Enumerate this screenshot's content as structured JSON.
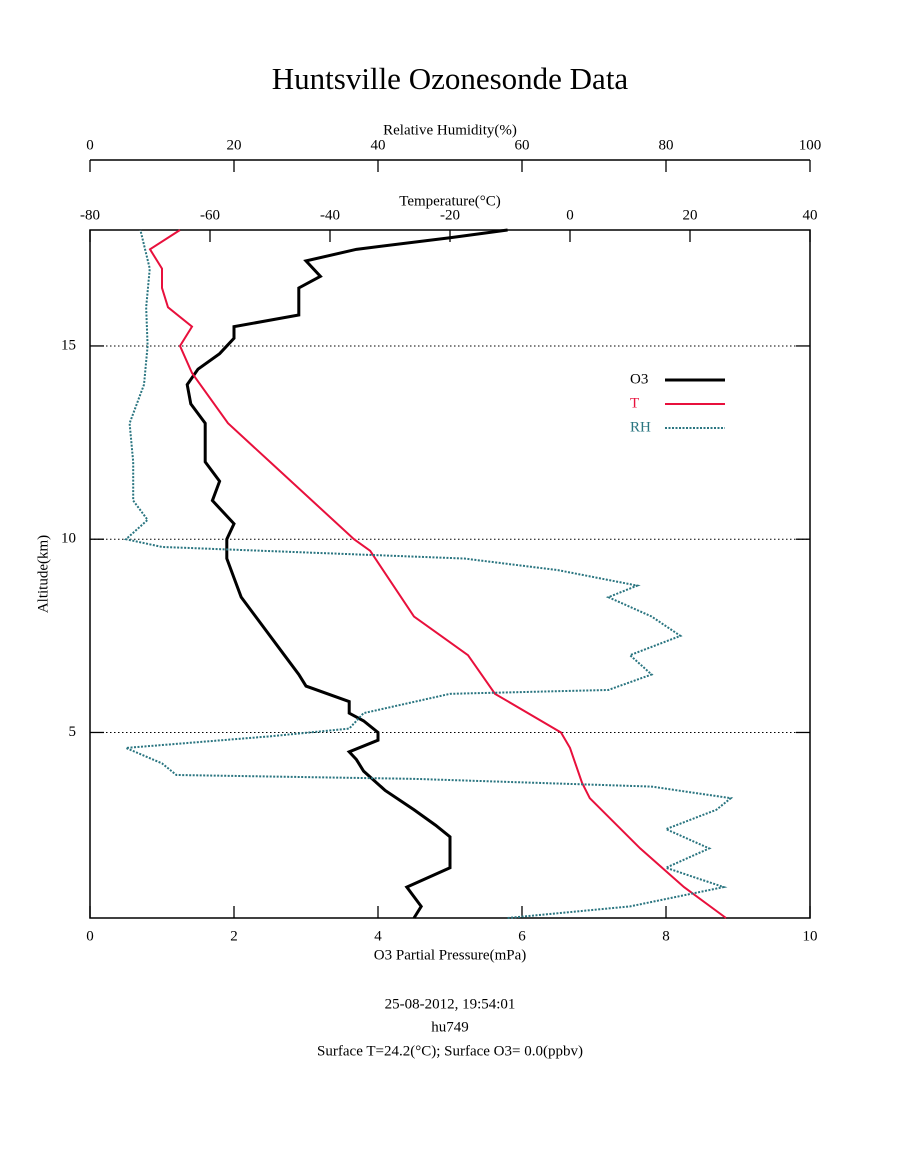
{
  "chart_data": {
    "type": "line",
    "title": "Huntsville Ozonesonde Data",
    "xlabel": "O3 Partial Pressure(mPa)",
    "x2label": "Relative Humidity(%)",
    "x3label": "Temperature(°C)",
    "ylabel": "Altitude(km)",
    "xlim": [
      0,
      10
    ],
    "xticks": [
      0,
      2,
      4,
      6,
      8,
      10
    ],
    "x2lim": [
      0,
      100
    ],
    "x2ticks": [
      0,
      20,
      40,
      60,
      80,
      100
    ],
    "x3lim": [
      -80,
      40
    ],
    "x3ticks": [
      -80,
      -60,
      -40,
      -20,
      0,
      20,
      40
    ],
    "ylim": [
      0.2,
      18
    ],
    "yticks": [
      5,
      10,
      15
    ],
    "grid": true,
    "legend": "upper right",
    "series": [
      {
        "name": "O3",
        "color": "#000000",
        "axis": "x",
        "values": [
          4.5,
          4.6,
          4.4,
          5.0,
          5.0,
          5.0,
          4.8,
          4.5,
          4.1,
          3.8,
          3.7,
          3.6,
          4.0,
          4.0,
          3.8,
          3.6,
          3.6,
          3.0,
          2.9,
          2.7,
          2.3,
          2.1,
          2.0,
          1.9,
          1.9,
          2.0,
          1.7,
          1.8,
          1.6,
          1.6,
          1.6,
          1.4,
          1.35,
          1.5,
          1.8,
          2.0,
          2.0,
          2.9,
          2.9,
          2.9,
          3.2,
          3.0,
          3.7,
          5.0,
          5.8
        ],
        "y": [
          0.2,
          0.5,
          1.0,
          1.5,
          2.0,
          2.3,
          2.6,
          3.0,
          3.5,
          4.0,
          4.3,
          4.5,
          4.8,
          5.0,
          5.3,
          5.5,
          5.8,
          6.2,
          6.5,
          7.0,
          8.0,
          8.5,
          9.0,
          9.5,
          10.0,
          10.4,
          11.0,
          11.5,
          12.0,
          12.5,
          13.0,
          13.5,
          14.0,
          14.4,
          14.8,
          15.2,
          15.5,
          15.8,
          16.3,
          16.5,
          16.8,
          17.2,
          17.5,
          17.8,
          18.0
        ]
      },
      {
        "name": "T",
        "color": "#e8103c",
        "axis": "x3",
        "values": [
          26,
          19,
          11.7,
          3.3,
          2,
          0,
          -1.5,
          -12.5,
          -17,
          -26,
          -33.3,
          -36,
          -50,
          -57,
          -63,
          -65,
          -63,
          -67,
          -68,
          -68,
          -70,
          -65
        ],
        "y": [
          0.2,
          1.0,
          2.0,
          3.3,
          3.7,
          4.6,
          5.0,
          6.0,
          7.0,
          8.0,
          9.7,
          10.0,
          12.0,
          13.0,
          14.3,
          15.0,
          15.5,
          16.0,
          16.5,
          17.0,
          17.5,
          18.0
        ]
      },
      {
        "name": "RH",
        "color": "#2a7580",
        "axis": "x2",
        "values": [
          58,
          75,
          88,
          80,
          86,
          80,
          87,
          89,
          78,
          45,
          12,
          10,
          5,
          25,
          36,
          38,
          50,
          72,
          78,
          75,
          82,
          78,
          72,
          76,
          65,
          52,
          10,
          5,
          8,
          6,
          6,
          5.5,
          7.5,
          8,
          7.8,
          8.3,
          7
        ],
        "y": [
          0.2,
          0.5,
          1.0,
          1.5,
          2.0,
          2.5,
          3.0,
          3.3,
          3.6,
          3.8,
          3.9,
          4.2,
          4.6,
          4.9,
          5.1,
          5.5,
          6.0,
          6.1,
          6.5,
          7.0,
          7.5,
          8.0,
          8.5,
          8.8,
          9.2,
          9.5,
          9.8,
          10.0,
          10.5,
          11.0,
          12.0,
          13.0,
          14.0,
          15.0,
          16.0,
          17.0,
          18.0
        ]
      }
    ],
    "annotations": [
      "25-08-2012, 19:54:01",
      "hu749",
      "Surface T=24.2(°C); Surface O3= 0.0(ppbv)"
    ]
  }
}
